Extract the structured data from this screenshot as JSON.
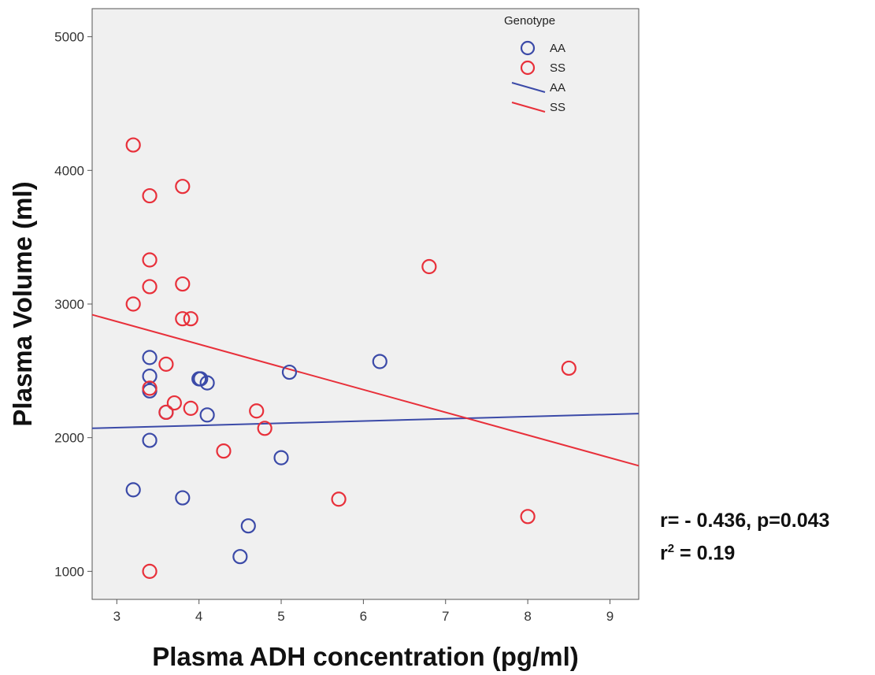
{
  "chart_data": {
    "type": "scatter",
    "xlabel": "Plasma ADH concentration (pg/ml)",
    "ylabel": "Plasma Volume (ml)",
    "xlim": [
      2.7,
      9.35
    ],
    "ylim": [
      790,
      5210
    ],
    "x_ticks": [
      3,
      4,
      5,
      6,
      7,
      8,
      9
    ],
    "y_ticks": [
      1000,
      2000,
      3000,
      4000,
      5000
    ],
    "grid": false,
    "legend": {
      "title": "Genotype",
      "placement": "top-right",
      "entries": [
        {
          "label": "AA",
          "kind": "marker",
          "color": "#3b4aa8"
        },
        {
          "label": "SS",
          "kind": "marker",
          "color": "#e8303a"
        },
        {
          "label": "AA",
          "kind": "line",
          "color": "#3b4aa8"
        },
        {
          "label": "SS",
          "kind": "line",
          "color": "#e8303a"
        }
      ]
    },
    "series": [
      {
        "name": "AA",
        "color": "#3b4aa8",
        "points": [
          [
            3.4,
            2600
          ],
          [
            3.4,
            2460
          ],
          [
            3.4,
            2350
          ],
          [
            3.4,
            1980
          ],
          [
            3.2,
            1610
          ],
          [
            3.8,
            1550
          ],
          [
            4.0,
            2440
          ],
          [
            4.02,
            2440
          ],
          [
            4.1,
            2410
          ],
          [
            4.1,
            2170
          ],
          [
            3.6,
            2190
          ],
          [
            4.6,
            1340
          ],
          [
            4.5,
            1110
          ],
          [
            5.0,
            1850
          ],
          [
            5.1,
            2490
          ],
          [
            6.2,
            2570
          ]
        ],
        "fit": {
          "x": [
            2.7,
            9.35
          ],
          "y": [
            2070,
            2180
          ]
        }
      },
      {
        "name": "SS",
        "color": "#e8303a",
        "points": [
          [
            3.2,
            4190
          ],
          [
            3.4,
            3810
          ],
          [
            3.8,
            3880
          ],
          [
            3.4,
            3330
          ],
          [
            3.4,
            3130
          ],
          [
            3.8,
            3150
          ],
          [
            3.2,
            3000
          ],
          [
            3.8,
            2890
          ],
          [
            3.9,
            2890
          ],
          [
            3.6,
            2550
          ],
          [
            3.4,
            2370
          ],
          [
            3.7,
            2260
          ],
          [
            3.6,
            2190
          ],
          [
            3.9,
            2220
          ],
          [
            4.7,
            2200
          ],
          [
            4.8,
            2070
          ],
          [
            4.3,
            1900
          ],
          [
            3.4,
            1000
          ],
          [
            5.7,
            1540
          ],
          [
            6.8,
            3280
          ],
          [
            8.5,
            2520
          ],
          [
            8.0,
            1410
          ]
        ],
        "fit": {
          "x": [
            2.7,
            9.35
          ],
          "y": [
            2920,
            1790
          ]
        }
      }
    ],
    "annotations": {
      "r_text": "r= - 0.436, p=0.043",
      "r2_prefix": "r",
      "r2_sup": "2",
      "r2_rest": " = 0.19"
    }
  }
}
